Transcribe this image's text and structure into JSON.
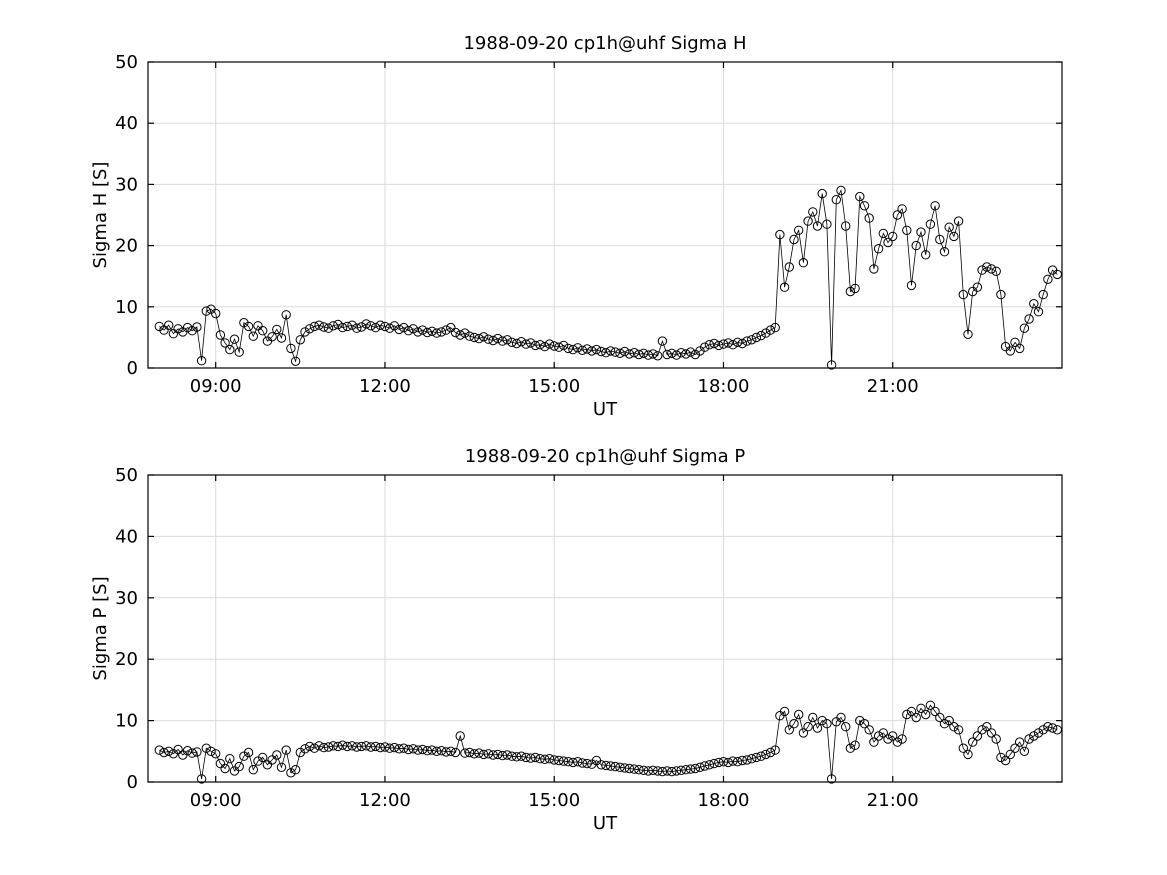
{
  "figure": {
    "background": "#ffffff",
    "text_color": "#000000"
  },
  "chart_data": [
    {
      "type": "line",
      "title": "1988-09-20  cp1h@uhf Sigma H",
      "xlabel": "UT",
      "ylabel": "Sigma H [S]",
      "xlim": [
        7.8,
        24.0
      ],
      "ylim": [
        0,
        50
      ],
      "xticks": [
        9,
        12,
        15,
        18,
        21
      ],
      "xtick_labels": [
        "09:00",
        "12:00",
        "15:00",
        "18:00",
        "21:00"
      ],
      "yticks": [
        0,
        10,
        20,
        30,
        40,
        50
      ],
      "ytick_labels": [
        "0",
        "10",
        "20",
        "30",
        "40",
        "50"
      ],
      "grid": true,
      "grid_color": "#dcdcdc",
      "axis_color": "#000000",
      "line_color": "#000000",
      "marker": "circle-open",
      "x_start_hour": 8.0,
      "x_step_minutes": 5,
      "values": [
        6.8,
        6.2,
        7.0,
        5.6,
        6.4,
        5.9,
        6.6,
        6.1,
        6.7,
        1.2,
        9.3,
        9.6,
        8.9,
        5.4,
        4.1,
        3.0,
        4.7,
        2.6,
        7.4,
        6.8,
        5.2,
        6.9,
        6.1,
        4.4,
        5.1,
        6.3,
        4.9,
        8.7,
        3.2,
        1.1,
        4.6,
        5.9,
        6.4,
        6.8,
        7.0,
        6.7,
        6.5,
        6.9,
        7.1,
        6.6,
        6.8,
        7.0,
        6.5,
        6.7,
        7.2,
        6.9,
        6.6,
        7.0,
        6.8,
        6.5,
        6.9,
        6.3,
        6.6,
        6.1,
        6.4,
        5.9,
        6.2,
        5.8,
        6.0,
        5.7,
        5.9,
        6.2,
        6.6,
        5.8,
        5.4,
        5.7,
        5.2,
        5.0,
        4.8,
        5.1,
        4.7,
        4.5,
        4.8,
        4.4,
        4.6,
        4.2,
        4.0,
        4.3,
        3.9,
        4.1,
        3.7,
        3.8,
        3.5,
        3.9,
        3.6,
        3.4,
        3.7,
        3.2,
        3.0,
        3.3,
        2.9,
        3.1,
        2.8,
        3.0,
        2.7,
        2.5,
        2.8,
        2.6,
        2.4,
        2.7,
        2.3,
        2.5,
        2.2,
        2.4,
        2.1,
        2.3,
        2.0,
        4.4,
        2.2,
        2.4,
        2.1,
        2.5,
        2.3,
        2.6,
        2.2,
        2.8,
        3.4,
        3.8,
        4.0,
        3.7,
        3.9,
        4.1,
        3.8,
        4.2,
        4.0,
        4.4,
        4.6,
        5.0,
        5.3,
        5.7,
        6.2,
        6.6,
        21.8,
        13.2,
        16.5,
        21.0,
        22.5,
        17.2,
        24.0,
        25.5,
        23.2,
        28.5,
        23.5,
        0.5,
        27.5,
        29.0,
        23.2,
        12.5,
        13.0,
        28.0,
        26.5,
        24.5,
        16.2,
        19.5,
        22.0,
        20.5,
        21.5,
        25.0,
        26.0,
        22.5,
        13.5,
        20.0,
        22.2,
        18.5,
        23.5,
        26.5,
        21.0,
        19.0,
        23.0,
        21.5,
        24.0,
        12.0,
        5.5,
        12.5,
        13.2,
        16.0,
        16.5,
        16.2,
        15.8,
        12.0,
        3.5,
        2.8,
        4.2,
        3.2,
        6.5,
        8.0,
        10.5,
        9.2,
        12.0,
        14.5,
        16.0,
        15.3
      ]
    },
    {
      "type": "line",
      "title": "1988-09-20  cp1h@uhf Sigma P",
      "xlabel": "UT",
      "ylabel": "Sigma P [S]",
      "xlim": [
        7.8,
        24.0
      ],
      "ylim": [
        0,
        50
      ],
      "xticks": [
        9,
        12,
        15,
        18,
        21
      ],
      "xtick_labels": [
        "09:00",
        "12:00",
        "15:00",
        "18:00",
        "21:00"
      ],
      "yticks": [
        0,
        10,
        20,
        30,
        40,
        50
      ],
      "ytick_labels": [
        "0",
        "10",
        "20",
        "30",
        "40",
        "50"
      ],
      "grid": true,
      "grid_color": "#dcdcdc",
      "axis_color": "#000000",
      "line_color": "#000000",
      "marker": "circle-open",
      "x_start_hour": 8.0,
      "x_step_minutes": 5,
      "values": [
        5.2,
        4.8,
        5.0,
        4.6,
        5.3,
        4.4,
        5.1,
        4.7,
        4.9,
        0.5,
        5.5,
        5.0,
        4.6,
        3.0,
        2.2,
        3.8,
        1.8,
        2.5,
        4.2,
        4.8,
        2.0,
        3.4,
        4.0,
        2.8,
        3.6,
        4.4,
        2.4,
        5.2,
        1.5,
        2.0,
        4.8,
        5.4,
        5.8,
        5.5,
        5.9,
        5.6,
        5.7,
        5.9,
        5.8,
        6.0,
        5.8,
        5.9,
        5.7,
        5.8,
        5.9,
        5.7,
        5.8,
        5.6,
        5.7,
        5.5,
        5.6,
        5.4,
        5.5,
        5.3,
        5.4,
        5.2,
        5.3,
        5.1,
        5.2,
        5.0,
        5.1,
        4.9,
        5.0,
        4.8,
        7.5,
        4.7,
        4.8,
        4.6,
        4.7,
        4.5,
        4.6,
        4.4,
        4.5,
        4.3,
        4.4,
        4.2,
        4.1,
        4.2,
        4.0,
        3.9,
        4.0,
        3.8,
        3.7,
        3.8,
        3.6,
        3.5,
        3.4,
        3.3,
        3.2,
        3.3,
        3.1,
        3.0,
        2.9,
        3.5,
        2.8,
        2.7,
        2.6,
        2.5,
        2.4,
        2.3,
        2.2,
        2.1,
        2.0,
        1.9,
        1.8,
        1.9,
        1.8,
        1.7,
        1.8,
        1.7,
        1.8,
        1.9,
        2.0,
        2.1,
        2.2,
        2.4,
        2.6,
        2.8,
        3.0,
        3.2,
        3.3,
        3.2,
        3.4,
        3.3,
        3.5,
        3.6,
        3.8,
        4.0,
        4.2,
        4.5,
        4.8,
        5.2,
        10.8,
        11.5,
        8.5,
        9.5,
        11.0,
        8.0,
        9.0,
        10.5,
        8.8,
        10.0,
        9.5,
        0.5,
        9.8,
        10.5,
        9.0,
        5.5,
        6.0,
        10.0,
        9.5,
        8.5,
        6.5,
        7.5,
        8.0,
        7.0,
        7.5,
        6.5,
        7.0,
        11.0,
        11.5,
        10.5,
        12.0,
        11.0,
        12.5,
        11.5,
        10.5,
        9.5,
        10.0,
        9.0,
        8.5,
        5.5,
        4.5,
        6.5,
        7.5,
        8.5,
        9.0,
        8.0,
        7.0,
        4.0,
        3.5,
        4.5,
        5.5,
        6.5,
        5.0,
        7.0,
        7.5,
        8.0,
        8.5,
        9.0,
        8.8,
        8.5
      ]
    }
  ]
}
